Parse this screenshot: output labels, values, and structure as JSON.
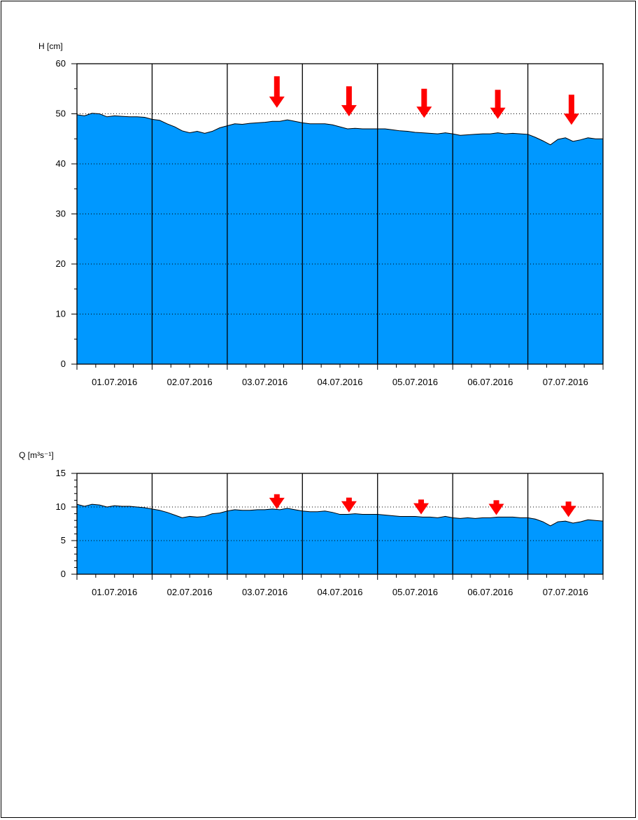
{
  "chart_data": [
    {
      "type": "area",
      "ylabel": "H [cm]",
      "ylim": [
        0,
        60
      ],
      "yticks": [
        0,
        10,
        20,
        30,
        40,
        50,
        60
      ],
      "yticks_labels": [
        "0",
        "10",
        "20",
        "30",
        "40",
        "50",
        "60"
      ],
      "categories": [
        "01.07.2016",
        "02.07.2016",
        "03.07.2016",
        "04.07.2016",
        "05.07.2016",
        "06.07.2016",
        "07.07.2016"
      ],
      "gridlines_dotted": [
        10,
        20,
        30,
        40,
        50
      ],
      "fill_color": "#0098FF",
      "arrow_color": "#FF0000",
      "series": [
        {
          "x": [
            0,
            0.1,
            0.2,
            0.3,
            0.4,
            0.5,
            0.6,
            0.7,
            0.8,
            0.9,
            1.0,
            1.1,
            1.2,
            1.3,
            1.4,
            1.5,
            1.6,
            1.7,
            1.8,
            1.9,
            2.0,
            2.1,
            2.2,
            2.3,
            2.4,
            2.5,
            2.6,
            2.7,
            2.8,
            2.9,
            3.0,
            3.1,
            3.2,
            3.3,
            3.4,
            3.5,
            3.6,
            3.7,
            3.8,
            3.9,
            4.0,
            4.1,
            4.2,
            4.3,
            4.4,
            4.5,
            4.6,
            4.7,
            4.8,
            4.9,
            5.0,
            5.1,
            5.2,
            5.3,
            5.4,
            5.5,
            5.6,
            5.7,
            5.8,
            5.9,
            6.0,
            6.1,
            6.2,
            6.3,
            6.4,
            6.5,
            6.6,
            6.7,
            6.8,
            6.9,
            7.0
          ],
          "values": [
            49.8,
            49.6,
            50.1,
            50.0,
            49.4,
            49.6,
            49.5,
            49.4,
            49.4,
            49.3,
            48.9,
            48.7,
            48.0,
            47.4,
            46.6,
            46.2,
            46.5,
            46.1,
            46.5,
            47.2,
            47.6,
            48.0,
            47.9,
            48.1,
            48.2,
            48.3,
            48.5,
            48.5,
            48.8,
            48.5,
            48.2,
            48.0,
            48.0,
            48.0,
            47.8,
            47.4,
            47.0,
            47.1,
            47.0,
            47.0,
            47.0,
            47.0,
            46.8,
            46.6,
            46.5,
            46.3,
            46.2,
            46.1,
            46.0,
            46.2,
            46.0,
            45.7,
            45.8,
            45.9,
            46.0,
            46.0,
            46.2,
            46.0,
            46.1,
            46.0,
            45.9,
            45.3,
            44.6,
            43.8,
            44.9,
            45.2,
            44.5,
            44.8,
            45.2,
            45.0,
            45.0
          ]
        }
      ],
      "annotations": [
        {
          "type": "arrow",
          "x": 2.66,
          "y_from": 57.5,
          "y_to": 51.2
        },
        {
          "type": "arrow",
          "x": 3.62,
          "y_from": 55.5,
          "y_to": 49.5
        },
        {
          "type": "arrow",
          "x": 4.62,
          "y_from": 55.0,
          "y_to": 49.2
        },
        {
          "type": "arrow",
          "x": 5.6,
          "y_from": 54.8,
          "y_to": 49.0
        },
        {
          "type": "arrow",
          "x": 6.58,
          "y_from": 53.8,
          "y_to": 47.8
        }
      ]
    },
    {
      "type": "area",
      "ylabel": "Q [m³s⁻¹]",
      "ylim": [
        0,
        15
      ],
      "yticks": [
        0,
        5,
        10,
        15
      ],
      "yticks_labels": [
        "0",
        "5",
        "10",
        "15"
      ],
      "categories": [
        "01.07.2016",
        "02.07.2016",
        "03.07.2016",
        "04.07.2016",
        "05.07.2016",
        "06.07.2016",
        "07.07.2016"
      ],
      "gridlines_dotted": [
        5,
        10
      ],
      "fill_color": "#0098FF",
      "arrow_color": "#FF0000",
      "series": [
        {
          "x": [
            0,
            0.1,
            0.2,
            0.3,
            0.4,
            0.5,
            0.6,
            0.7,
            0.8,
            0.9,
            1.0,
            1.1,
            1.2,
            1.3,
            1.4,
            1.5,
            1.6,
            1.7,
            1.8,
            1.9,
            2.0,
            2.1,
            2.2,
            2.3,
            2.4,
            2.5,
            2.6,
            2.7,
            2.8,
            2.9,
            3.0,
            3.1,
            3.2,
            3.3,
            3.4,
            3.5,
            3.6,
            3.7,
            3.8,
            3.9,
            4.0,
            4.1,
            4.2,
            4.3,
            4.4,
            4.5,
            4.6,
            4.7,
            4.8,
            4.9,
            5.0,
            5.1,
            5.2,
            5.3,
            5.4,
            5.5,
            5.6,
            5.7,
            5.8,
            5.9,
            6.0,
            6.1,
            6.2,
            6.3,
            6.4,
            6.5,
            6.6,
            6.7,
            6.8,
            6.9,
            7.0
          ],
          "values": [
            10.4,
            10.1,
            10.4,
            10.3,
            10.0,
            10.2,
            10.1,
            10.1,
            10.0,
            9.9,
            9.7,
            9.5,
            9.2,
            8.8,
            8.4,
            8.6,
            8.5,
            8.6,
            9.0,
            9.1,
            9.4,
            9.6,
            9.5,
            9.5,
            9.6,
            9.6,
            9.7,
            9.6,
            9.8,
            9.6,
            9.4,
            9.3,
            9.3,
            9.4,
            9.2,
            8.9,
            8.9,
            9.0,
            8.9,
            8.9,
            8.9,
            8.8,
            8.7,
            8.6,
            8.6,
            8.6,
            8.5,
            8.5,
            8.4,
            8.6,
            8.4,
            8.3,
            8.4,
            8.3,
            8.4,
            8.4,
            8.5,
            8.5,
            8.5,
            8.4,
            8.4,
            8.2,
            7.8,
            7.2,
            7.8,
            7.9,
            7.6,
            7.8,
            8.1,
            8.0,
            7.9
          ]
        }
      ],
      "annotations": [
        {
          "type": "arrow",
          "x": 2.66,
          "y_from": 11.9,
          "y_to": 9.7
        },
        {
          "type": "arrow",
          "x": 3.62,
          "y_from": 11.4,
          "y_to": 9.2
        },
        {
          "type": "arrow",
          "x": 4.58,
          "y_from": 11.1,
          "y_to": 8.9
        },
        {
          "type": "arrow",
          "x": 5.58,
          "y_from": 11.0,
          "y_to": 8.8
        },
        {
          "type": "arrow",
          "x": 6.54,
          "y_from": 10.8,
          "y_to": 8.5
        }
      ]
    }
  ]
}
